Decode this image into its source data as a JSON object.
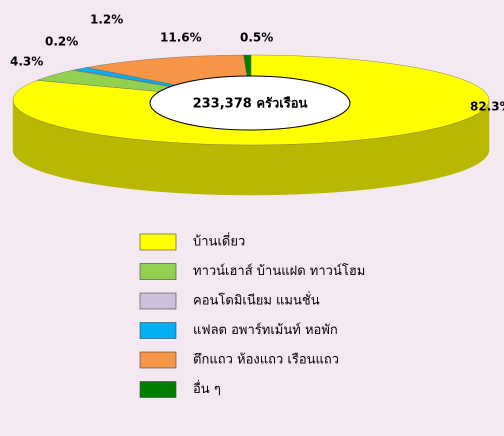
{
  "chart_data": {
    "type": "pie",
    "center_label": "233,378 ครัวเรือน",
    "categories": [
      "บ้านเดี่ยว",
      "ทาวน์เฮาส์ บ้านแฝด ทาวน์โฮม",
      "คอนโดมิเนียม แมนชั่น",
      "แฟลต อพาร์ทเม้นท์ หอพัก",
      "ตึกแถว ห้องแถว เรือนแถว",
      "อื่น ๆ"
    ],
    "values": [
      82.3,
      4.3,
      0.2,
      1.2,
      11.6,
      0.5
    ],
    "value_labels": [
      "82.3%",
      "4.3%",
      "0.2%",
      "1.2%",
      "11.6%",
      "0.5%"
    ],
    "colors": [
      "#ffff00",
      "#92d050",
      "#ccc0da",
      "#00b0f0",
      "#f79646",
      "#008000"
    ],
    "legend": "bottom"
  }
}
